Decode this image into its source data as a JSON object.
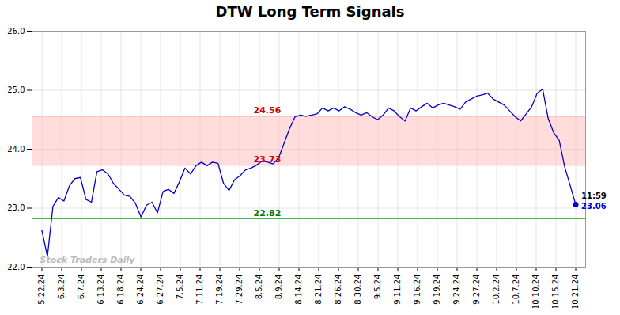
{
  "chart_data": {
    "type": "line",
    "title": "DTW Long Term Signals",
    "watermark": "Stock Traders Daily",
    "color": "#0000cc",
    "x": [
      0,
      0.2784,
      0.5567,
      0.8351,
      1.1134,
      1.3918,
      1.6701,
      1.9485,
      2.2268,
      2.5052,
      2.7835,
      3.0619,
      3.3402,
      3.6186,
      3.8969,
      4.1753,
      4.4536,
      4.732,
      5.0103,
      5.2887,
      5.567,
      5.8454,
      6.1237,
      6.4021,
      6.6804,
      6.9588,
      7.2371,
      7.5155,
      7.7938,
      8.0722,
      8.3505,
      8.6289,
      8.9072,
      9.1856,
      9.4639,
      9.7423,
      10.0206,
      10.299,
      10.5773,
      10.8557,
      11.134,
      11.4124,
      11.6907,
      11.9691,
      12.2474,
      12.5258,
      12.8041,
      13.0825,
      13.3608,
      13.6392,
      13.9175,
      14.1959,
      14.4742,
      14.7526,
      15.0309,
      15.3093,
      15.5876,
      15.866,
      16.1443,
      16.4227,
      16.701,
      16.9794,
      17.2577,
      17.5361,
      17.8144,
      18.0928,
      18.3711,
      18.6495,
      18.9278,
      19.2062,
      19.4845,
      19.7629,
      20.0412,
      20.3196,
      20.5979,
      20.8763,
      21.1546,
      21.433,
      21.7113,
      21.9897,
      22.268,
      22.5464,
      22.8247,
      23.1031,
      23.3814,
      23.6598,
      23.9381,
      24.2165,
      24.4948,
      24.7732,
      25.0515,
      25.3299,
      25.6082,
      25.8866,
      26.1649,
      26.4433,
      26.7216,
      27
    ],
    "values": [
      22.62,
      22.18,
      23.03,
      23.18,
      23.12,
      23.38,
      23.5,
      23.52,
      23.15,
      23.1,
      23.62,
      23.65,
      23.58,
      23.42,
      23.32,
      23.22,
      23.2,
      23.08,
      22.85,
      23.05,
      23.1,
      22.92,
      23.28,
      23.32,
      23.25,
      23.45,
      23.68,
      23.58,
      23.72,
      23.78,
      23.72,
      23.78,
      23.76,
      23.42,
      23.3,
      23.48,
      23.55,
      23.65,
      23.68,
      23.73,
      23.8,
      23.78,
      23.75,
      23.85,
      24.1,
      24.35,
      24.55,
      24.58,
      24.56,
      24.58,
      24.6,
      24.7,
      24.65,
      24.7,
      24.65,
      24.72,
      24.68,
      24.62,
      24.58,
      24.62,
      24.55,
      24.5,
      24.58,
      24.7,
      24.65,
      24.55,
      24.48,
      24.7,
      24.65,
      24.72,
      24.78,
      24.7,
      24.75,
      24.78,
      24.75,
      24.72,
      24.68,
      24.8,
      24.85,
      24.9,
      24.92,
      24.95,
      24.85,
      24.8,
      24.75,
      24.65,
      24.55,
      24.48,
      24.6,
      24.72,
      24.95,
      25.02,
      24.52,
      24.28,
      24.15,
      23.7,
      23.38,
      23.06
    ],
    "xlim": [
      -0.5,
      27.5
    ],
    "xticks": [
      {
        "value": 0,
        "label": "5.22.24"
      },
      {
        "value": 1,
        "label": "6.3.24"
      },
      {
        "value": 2,
        "label": "6.7.24"
      },
      {
        "value": 3,
        "label": "6.13.24"
      },
      {
        "value": 4,
        "label": "6.18.24"
      },
      {
        "value": 5,
        "label": "6.24.24"
      },
      {
        "value": 6,
        "label": "6.27.24"
      },
      {
        "value": 7,
        "label": "7.5.24"
      },
      {
        "value": 8,
        "label": "7.11.24"
      },
      {
        "value": 9,
        "label": "7.19.24"
      },
      {
        "value": 10,
        "label": "7.29.24"
      },
      {
        "value": 11,
        "label": "8.5.24"
      },
      {
        "value": 12,
        "label": "8.9.24"
      },
      {
        "value": 13,
        "label": "8.14.24"
      },
      {
        "value": 14,
        "label": "8.21.24"
      },
      {
        "value": 15,
        "label": "8.26.24"
      },
      {
        "value": 16,
        "label": "8.30.24"
      },
      {
        "value": 17,
        "label": "9.5.24"
      },
      {
        "value": 18,
        "label": "9.11.24"
      },
      {
        "value": 19,
        "label": "9.16.24"
      },
      {
        "value": 20,
        "label": "9.19.24"
      },
      {
        "value": 21,
        "label": "9.24.24"
      },
      {
        "value": 22,
        "label": "9.27.24"
      },
      {
        "value": 23,
        "label": "10.2.24"
      },
      {
        "value": 24,
        "label": "10.7.24"
      },
      {
        "value": 25,
        "label": "10.10.24"
      },
      {
        "value": 26,
        "label": "10.15.24"
      },
      {
        "value": 27,
        "label": "10.21.24"
      }
    ],
    "ylim": [
      22.0,
      26.0
    ],
    "yticks": [
      22,
      23,
      24,
      25,
      26
    ],
    "grid": true,
    "bands": [
      {
        "from": 23.73,
        "to": 24.56,
        "color": "#ffbbbb",
        "line_color": "#ffaaaa"
      }
    ],
    "hlines": [
      {
        "value": 22.82,
        "color": "#44bb44"
      }
    ],
    "annotations": [
      {
        "text": "24.56",
        "value": 24.56,
        "color": "#cc0000"
      },
      {
        "text": "23.73",
        "value": 23.73,
        "color": "#cc0000"
      },
      {
        "text": "22.82",
        "value": 22.82,
        "color": "#007700"
      }
    ],
    "last_point": {
      "x": 27,
      "y": 23.06,
      "color": "#0000cc",
      "time_label": "11:59",
      "value_label": "23.06"
    }
  }
}
